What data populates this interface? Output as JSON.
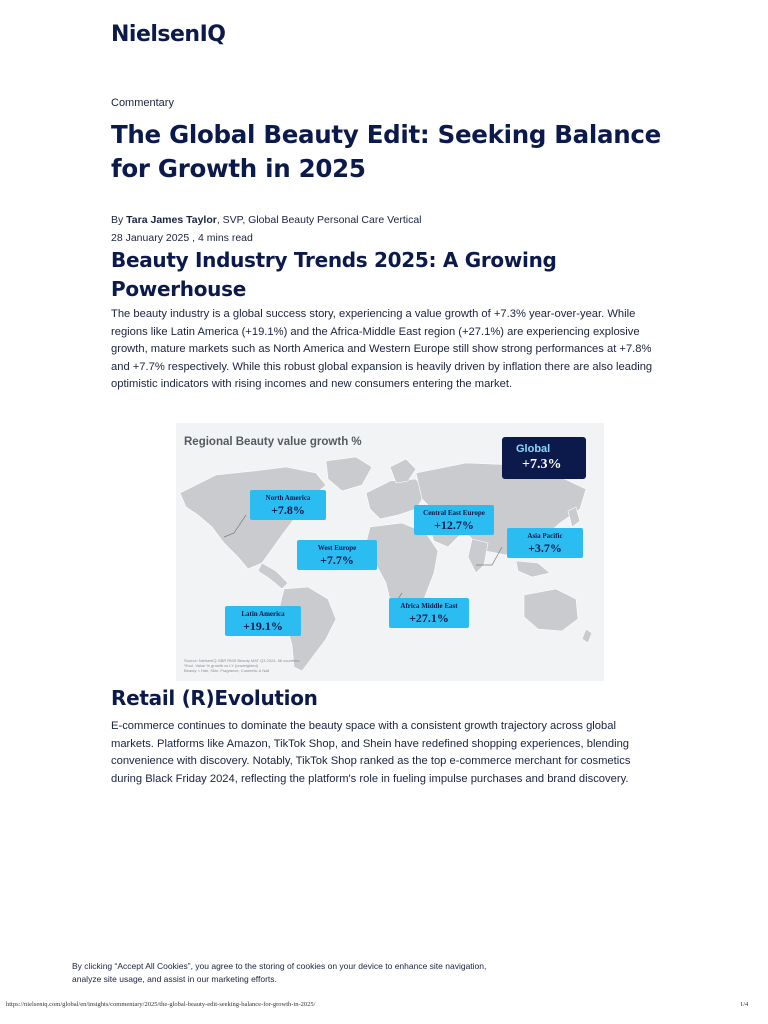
{
  "brand": {
    "logo": "NielsenIQ"
  },
  "article": {
    "category": "Commentary",
    "title": "The Global Beauty Edit: Seeking Balance for Growth in 2025",
    "byline_prefix": "By ",
    "author": "Tara James Taylor",
    "author_role": ", SVP, Global Beauty Personal Care Vertical",
    "dateline": "28 January 2025 , 4 mins read"
  },
  "section1": {
    "heading": "Beauty Industry Trends 2025: A Growing Powerhouse",
    "body": "The beauty industry is a global success story, experiencing a value growth of +7.3% year-over-year. While regions like Latin America (+19.1%) and the Africa-Middle East region (+27.1%) are experiencing explosive growth, mature markets such as North America and Western Europe still show strong performances at +7.8% and +7.7% respectively. While this robust global expansion is heavily driven by inflation there are also leading optimistic indicators with rising incomes and new consumers entering the market."
  },
  "figure": {
    "title": "Regional Beauty value growth %",
    "global": {
      "label": "Global",
      "value": "+7.3%"
    },
    "regions": [
      {
        "label": "North America",
        "value": "+7.8%"
      },
      {
        "label": "Central East Europe",
        "value": "+12.7%"
      },
      {
        "label": "Asia Pacific",
        "value": "+3.7%"
      },
      {
        "label": "West Europe",
        "value": "+7.7%"
      },
      {
        "label": "Latin America",
        "value": "+19.1%"
      },
      {
        "label": "Africa Middle East",
        "value": "+27.1%"
      }
    ],
    "source_lines": [
      "Source: NielsenIQ GBR RMS Beauty MAT Q3 2024, 56 countries",
      "*Excl. Value % growth vs LY (unweighted)",
      "Beauty = Hair, Skin, Fragrance, Cosmetic & Nail"
    ],
    "colors": {
      "callout": "#2bbdf2",
      "global_box": "#0b1a4a",
      "map_land": "#c9cbce"
    }
  },
  "section2": {
    "heading": "Retail (R)Evolution",
    "body": "E-commerce continues to dominate the beauty space with a consistent growth trajectory across global markets. Platforms like Amazon, TikTok Shop, and Shein have redefined shopping experiences, blending convenience with discovery. Notably, TikTok Shop ranked as the top e-commerce merchant for cosmetics during Black Friday 2024, reflecting the platform's role in fueling impulse purchases and brand discovery."
  },
  "cookie_banner": {
    "text": "By clicking “Accept All Cookies”, you agree to the storing of cookies on your device to enhance site navigation, analyze site usage, and assist in our marketing efforts."
  },
  "footer": {
    "url": "https://nielseniq.com/global/en/insights/commentary/2025/the-global-beauty-edit-seeking-balance-for-growth-in-2025/",
    "page": "1/4"
  }
}
